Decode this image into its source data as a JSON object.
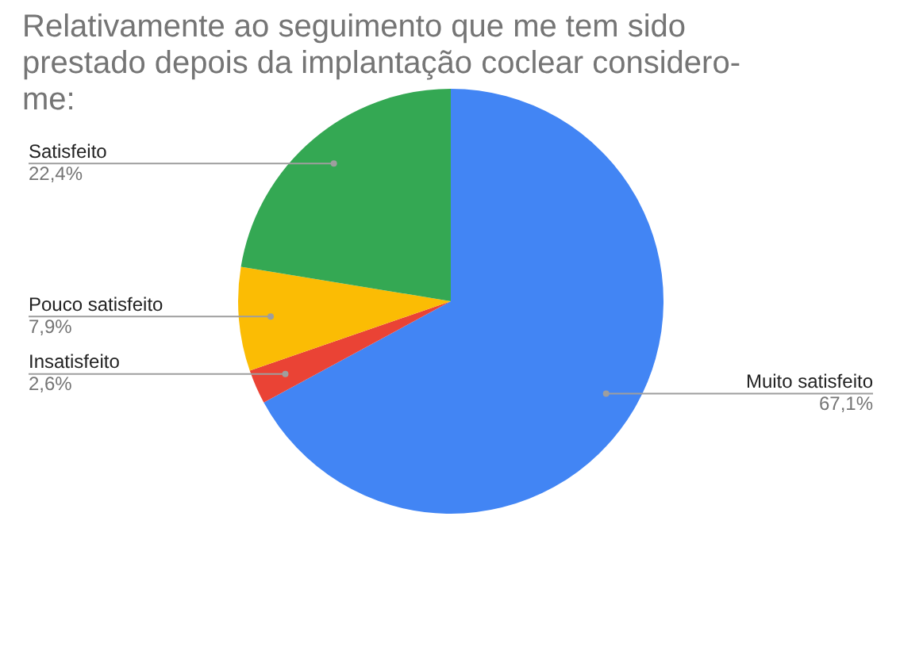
{
  "chart_data": {
    "type": "pie",
    "title": "Relativamente ao seguimento que me tem sido prestado depois da implantação coclear considero-me:",
    "categories": [
      "Muito satisfeito",
      "Insatisfeito",
      "Pouco satisfeito",
      "Satisfeito"
    ],
    "values": [
      67.1,
      2.6,
      7.9,
      22.4
    ],
    "colors": [
      "#4285f4",
      "#ea4335",
      "#fbbc04",
      "#34a853"
    ],
    "value_labels": [
      "67,1%",
      "2,6%",
      "7,9%",
      "22,4%"
    ],
    "legend": false
  }
}
